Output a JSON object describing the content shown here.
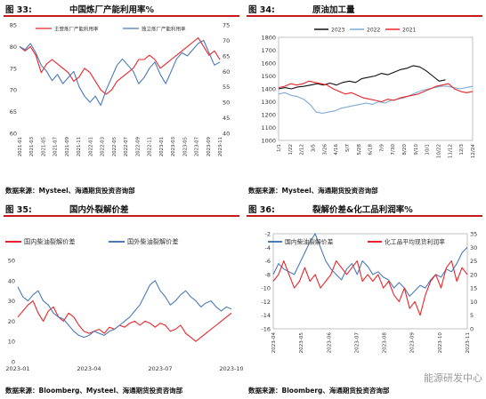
{
  "panels": [
    {
      "caption_num": "图 33:",
      "caption_title": "中国炼厂产能利用率%",
      "source": "数据来源：Mysteel、海通期货投资咨询部"
    },
    {
      "caption_num": "图 34:",
      "caption_title": "原油加工量",
      "source": "数据来源：Mysteel、海通期货投资咨询部"
    },
    {
      "caption_num": "图 35:",
      "caption_title": "国内外裂解价差",
      "source": "数据来源：Bloomberg、Mysteel、海通期货投资咨询部"
    },
    {
      "caption_num": "图 36:",
      "caption_title": "裂解价差&化工品利润率%",
      "source": "数据来源：Bloomberg、海通期货投资咨询部"
    }
  ],
  "watermark": "能源研发中心",
  "colors": {
    "red": "#e8252a",
    "blue": "#4a7ab8",
    "black": "#111111",
    "lightblue": "#7fa9d6",
    "caption_rule": "#c61a1a"
  },
  "chart_data": [
    {
      "type": "line",
      "title": "中国炼厂产能利用率%",
      "x_ticks": [
        "2021-01",
        "2021-03",
        "2021-05",
        "2021-07",
        "2021-09",
        "2021-11",
        "2022-01",
        "2022-03",
        "2022-05",
        "2022-07",
        "2022-09",
        "2022-11",
        "2023-01",
        "2023-03",
        "2023-05",
        "2023-07",
        "2023-09",
        "2023-11"
      ],
      "ylim_left": [
        60,
        85
      ],
      "yticks_left": [
        60,
        65,
        70,
        75,
        80,
        85
      ],
      "ylim_right": [
        40,
        75
      ],
      "yticks_right": [
        40,
        45,
        50,
        55,
        60,
        65,
        70,
        75
      ],
      "series": [
        {
          "name": "主营炼厂产能利用率",
          "color": "#e8252a",
          "axis": "left",
          "values": [
            80,
            79,
            80,
            78,
            74,
            76,
            77,
            76,
            75,
            74,
            72,
            73,
            75,
            74,
            72,
            70,
            69,
            70,
            72,
            73,
            74,
            75,
            77,
            77,
            78,
            77,
            75,
            76,
            77,
            78,
            79,
            80,
            81,
            82,
            80,
            78,
            79,
            77
          ]
        },
        {
          "name": "独立炼厂产能利用率",
          "color": "#4a7ab8",
          "axis": "right",
          "values": [
            68,
            67,
            69,
            66,
            62,
            60,
            57,
            59,
            56,
            58,
            60,
            55,
            52,
            50,
            52,
            49,
            54,
            58,
            62,
            64,
            62,
            60,
            56,
            58,
            61,
            63,
            59,
            56,
            60,
            64,
            66,
            65,
            67,
            69,
            70,
            66,
            62,
            63
          ]
        }
      ]
    },
    {
      "type": "line",
      "title": "原油加工量",
      "x_ticks": [
        "1/1",
        "1/22",
        "2/12",
        "3/5",
        "3/26",
        "4/16",
        "5/7",
        "5/28",
        "6/18",
        "7/9",
        "7/30",
        "8/20",
        "9/10",
        "10/1",
        "10/22",
        "11/12",
        "12/3",
        "12/24"
      ],
      "ylim": [
        1000,
        1800
      ],
      "yticks": [
        1000,
        1100,
        1200,
        1300,
        1400,
        1500,
        1600,
        1700,
        1800
      ],
      "series": [
        {
          "name": "2023",
          "color": "#111111",
          "values": [
            1400,
            1410,
            1400,
            1415,
            1420,
            1430,
            1440,
            1430,
            1445,
            1430,
            1450,
            1460,
            1450,
            1480,
            1490,
            1500,
            1520,
            1510,
            1530,
            1550,
            1560,
            1580,
            1570,
            1540,
            1500,
            1460,
            1470
          ]
        },
        {
          "name": "2022",
          "color": "#7fa9d6",
          "values": [
            1360,
            1370,
            1350,
            1340,
            1320,
            1280,
            1220,
            1210,
            1220,
            1230,
            1250,
            1260,
            1270,
            1280,
            1290,
            1280,
            1300,
            1290,
            1310,
            1320,
            1330,
            1350,
            1370,
            1390,
            1400,
            1410,
            1420,
            1420,
            1410,
            1400,
            1410,
            1420
          ]
        },
        {
          "name": "2021",
          "color": "#e8252a",
          "values": [
            1410,
            1420,
            1440,
            1430,
            1440,
            1460,
            1450,
            1440,
            1430,
            1400,
            1380,
            1360,
            1370,
            1350,
            1330,
            1320,
            1310,
            1300,
            1320,
            1310,
            1330,
            1340,
            1350,
            1360,
            1380,
            1400,
            1420,
            1430,
            1440,
            1400,
            1380,
            1370,
            1380
          ]
        }
      ]
    },
    {
      "type": "line",
      "title": "国内外裂解价差",
      "x_ticks": [
        "2023-01",
        "2023-04",
        "2023-07",
        "2023-10"
      ],
      "ylim": [
        0,
        50
      ],
      "yticks": [
        0,
        10,
        20,
        30,
        40,
        50
      ],
      "series": [
        {
          "name": "国内柴油裂解价差",
          "color": "#e8252a",
          "values": [
            22,
            25,
            28,
            30,
            24,
            20,
            25,
            27,
            22,
            20,
            24,
            22,
            18,
            15,
            14,
            15,
            16,
            14,
            17,
            16,
            18,
            17,
            19,
            20,
            18,
            20,
            19,
            17,
            19,
            18,
            15,
            16,
            18,
            14,
            12,
            10,
            12,
            14,
            16,
            18,
            20,
            22,
            24
          ]
        },
        {
          "name": "国外柴油裂解价差",
          "color": "#4a7ab8",
          "values": [
            37,
            32,
            30,
            33,
            35,
            30,
            28,
            24,
            22,
            21,
            18,
            15,
            13,
            12,
            13,
            15,
            14,
            13,
            15,
            16,
            18,
            20,
            22,
            25,
            28,
            33,
            38,
            40,
            35,
            32,
            28,
            30,
            33,
            35,
            32,
            30,
            27,
            29,
            30,
            27,
            25,
            27,
            26
          ]
        }
      ]
    },
    {
      "type": "line",
      "title": "裂解价差&化工品利润率%",
      "x_ticks": [
        "2023-04",
        "2023-05",
        "2023-06",
        "2023-07",
        "2023-08",
        "2023-09",
        "2023-10",
        "2023-11"
      ],
      "ylim_left": [
        -16,
        -2
      ],
      "yticks_left": [
        -16,
        -14,
        -12,
        -10,
        -8,
        -6,
        -4,
        -2
      ],
      "ylim_right": [
        0,
        35
      ],
      "yticks_right": [
        0,
        5,
        10,
        15,
        20,
        25,
        30,
        35
      ],
      "series": [
        {
          "name": "国内柴油裂解价差",
          "color": "#4a7ab8",
          "axis": "right",
          "values": [
            20,
            24,
            22,
            21,
            20,
            24,
            28,
            32,
            35,
            30,
            25,
            22,
            20,
            18,
            22,
            24,
            20,
            25,
            23,
            20,
            21,
            19,
            18,
            15,
            17,
            15,
            12,
            14,
            16,
            15,
            18,
            20,
            19,
            22,
            21,
            24,
            28,
            30
          ]
        },
        {
          "name": "化工品平均现货利润率",
          "color": "#e8252a",
          "axis": "left",
          "values": [
            -9,
            -8,
            -6,
            -8,
            -10,
            -9,
            -7,
            -9,
            -8,
            -10,
            -9,
            -8,
            -6,
            -7,
            -8,
            -7,
            -6,
            -9,
            -8,
            -9,
            -8,
            -10,
            -9,
            -11,
            -12,
            -10,
            -13,
            -12,
            -14,
            -11,
            -9,
            -8,
            -10,
            -7,
            -6,
            -9,
            -7,
            -8
          ]
        }
      ]
    }
  ]
}
